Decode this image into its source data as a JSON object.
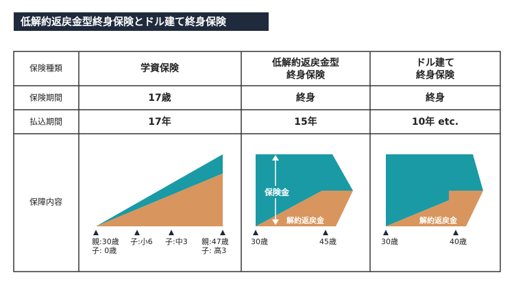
{
  "header": {
    "title": "低解約返戻金型終身保険とドル建て終身保険"
  },
  "table": {
    "header": [
      [
        "保険種類"
      ],
      [
        "学資保険"
      ],
      [
        "低解約返戻金型",
        "終身保険"
      ],
      [
        "ドル建て",
        "終身保険"
      ]
    ],
    "rows": [
      [
        "保険期間",
        "17歳",
        "終身",
        "終身"
      ],
      [
        "払込期間",
        "17年",
        "15年",
        "10年 etc."
      ],
      [
        "保障内容"
      ]
    ]
  },
  "diagrams": [
    {
      "labels": [
        "親:30歳",
        "子: 0歳",
        "子:小6",
        "子:中3",
        "親:47歳",
        "子: 高3"
      ]
    },
    {
      "labels": [
        "保険金",
        "解約返戻金",
        "30歳",
        "45歳"
      ]
    },
    {
      "labels": [
        "解約返戻金",
        "30歳",
        "40歳"
      ]
    }
  ]
}
